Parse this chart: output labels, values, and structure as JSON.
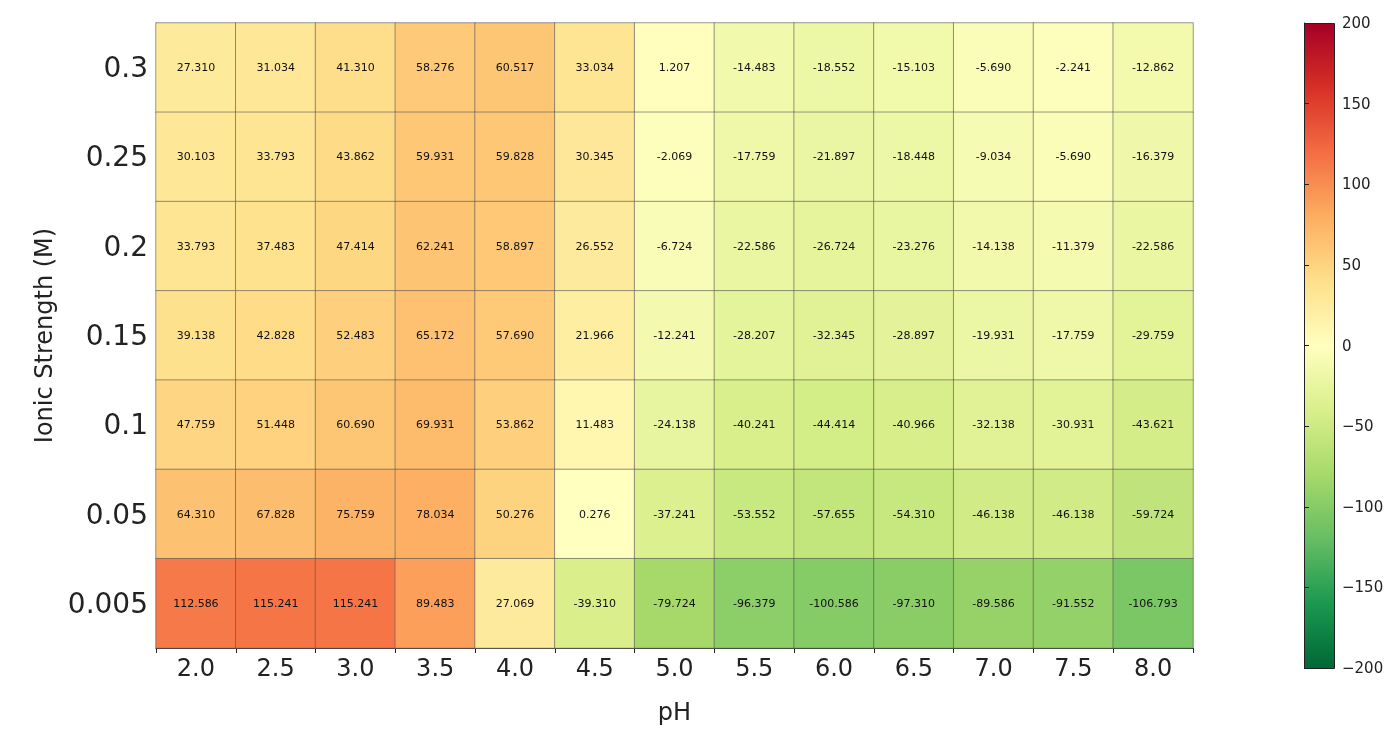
{
  "chart_data": {
    "type": "heatmap",
    "xlabel": "pH",
    "ylabel": "Ionic Strength (M)",
    "categories": [
      "2.0",
      "2.5",
      "3.0",
      "3.5",
      "4.0",
      "4.5",
      "5.0",
      "5.5",
      "6.0",
      "6.5",
      "7.0",
      "7.5",
      "8.0"
    ],
    "y_categories": [
      "0.3",
      "0.25",
      "0.2",
      "0.15",
      "0.1",
      "0.05",
      "0.005"
    ],
    "cells": [
      [
        27.31,
        31.034,
        41.31,
        58.276,
        60.517,
        33.034,
        1.207,
        -14.483,
        -18.552,
        -15.103,
        -5.69,
        -2.241,
        -12.862
      ],
      [
        30.103,
        33.793,
        43.862,
        59.931,
        59.828,
        30.345,
        -2.069,
        -17.759,
        -21.897,
        -18.448,
        -9.034,
        -5.69,
        -16.379
      ],
      [
        33.793,
        37.483,
        47.414,
        62.241,
        58.897,
        26.552,
        -6.724,
        -22.586,
        -26.724,
        -23.276,
        -14.138,
        -11.379,
        -22.586
      ],
      [
        39.138,
        42.828,
        52.483,
        65.172,
        57.69,
        21.966,
        -12.241,
        -28.207,
        -32.345,
        -28.897,
        -19.931,
        -17.759,
        -29.759
      ],
      [
        47.759,
        51.448,
        60.69,
        69.931,
        53.862,
        11.483,
        -24.138,
        -40.241,
        -44.414,
        -40.966,
        -32.138,
        -30.931,
        -43.621
      ],
      [
        64.31,
        67.828,
        75.759,
        78.034,
        50.276,
        0.276,
        -37.241,
        -53.552,
        -57.655,
        -54.31,
        -46.138,
        -46.138,
        -59.724
      ],
      [
        112.586,
        115.241,
        115.241,
        89.483,
        27.069,
        -39.31,
        -79.724,
        -96.379,
        -100.586,
        -97.31,
        -89.586,
        -91.552,
        -106.793
      ]
    ],
    "cell_labels": [
      [
        "27.310",
        "31.034",
        "41.310",
        "58.276",
        "60.517",
        "33.034",
        "1.207",
        "-14.483",
        "-18.552",
        "-15.103",
        "-5.690",
        "-2.241",
        "-12.862"
      ],
      [
        "30.103",
        "33.793",
        "43.862",
        "59.931",
        "59.828",
        "30.345",
        "-2.069",
        "-17.759",
        "-21.897",
        "-18.448",
        "-9.034",
        "-5.690",
        "-16.379"
      ],
      [
        "33.793",
        "37.483",
        "47.414",
        "62.241",
        "58.897",
        "26.552",
        "-6.724",
        "-22.586",
        "-26.724",
        "-23.276",
        "-14.138",
        "-11.379",
        "-22.586"
      ],
      [
        "39.138",
        "42.828",
        "52.483",
        "65.172",
        "57.690",
        "21.966",
        "-12.241",
        "-28.207",
        "-32.345",
        "-28.897",
        "-19.931",
        "-17.759",
        "-29.759"
      ],
      [
        "47.759",
        "51.448",
        "60.690",
        "69.931",
        "53.862",
        "11.483",
        "-24.138",
        "-40.241",
        "-44.414",
        "-40.966",
        "-32.138",
        "-30.931",
        "-43.621"
      ],
      [
        "64.310",
        "67.828",
        "75.759",
        "78.034",
        "50.276",
        "0.276",
        "-37.241",
        "-53.552",
        "-57.655",
        "-54.310",
        "-46.138",
        "-46.138",
        "-59.724"
      ],
      [
        "112.586",
        "115.241",
        "115.241",
        "89.483",
        "27.069",
        "-39.310",
        "-79.724",
        "-96.379",
        "-100.586",
        "-97.310",
        "-89.586",
        "-91.552",
        "-106.793"
      ]
    ],
    "clim": [
      -200,
      200
    ],
    "cticks": [
      {
        "value": -200,
        "label": "−200"
      },
      {
        "value": -150,
        "label": "−150"
      },
      {
        "value": -100,
        "label": "−100"
      },
      {
        "value": -50,
        "label": "−50"
      },
      0,
      50,
      100,
      150,
      200
    ]
  }
}
